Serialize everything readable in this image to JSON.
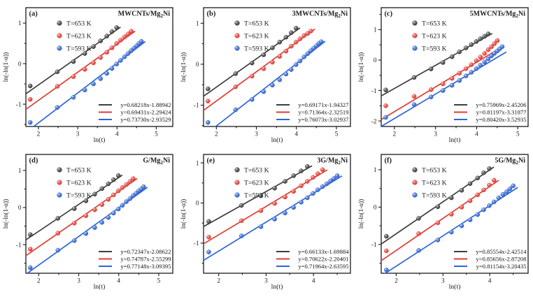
{
  "figure": {
    "background": "#ffffff",
    "axis_color": "#1a1a1a",
    "text_color": "#1a1a1a",
    "legend_labels": [
      "T=653 K",
      "T=623 K",
      "T=593 K"
    ],
    "series_colors": {
      "black": "#2e2e2e",
      "red": "#dd2c23",
      "blue": "#1f55c9"
    }
  },
  "chart_data": [
    {
      "type": "scatter",
      "panel_label": "(a)",
      "title_pre": "MWCNTs/Mg",
      "title_sub": "2",
      "title_post": "Ni",
      "xlabel": "ln(t)",
      "ylabel": "ln(-ln(1-α))",
      "xlim": [
        1.68,
        5.42
      ],
      "ylim": [
        -1.55,
        1.38
      ],
      "xticks": [
        2,
        3,
        4,
        5
      ],
      "yticks": [
        -1,
        0,
        1
      ],
      "grid": false,
      "legend_position": "top-left",
      "equations_position": "bottom-right",
      "series": [
        {
          "name": "T=653 K",
          "marker_color": "#2e2e2e",
          "line_color": "#3f3f3f",
          "fit_slope": 0.68218,
          "fit_intercept": -1.88942,
          "fit_label": "y=0.68218x-1.88942",
          "x": [
            1.79,
            2.48,
            2.89,
            3.18,
            3.4,
            3.58,
            3.74,
            3.87,
            3.99
          ],
          "y": [
            -0.55,
            -0.2,
            0.05,
            0.25,
            0.42,
            0.56,
            0.68,
            0.79,
            0.89
          ]
        },
        {
          "name": "T=623 K",
          "marker_color": "#dd2c23",
          "line_color": "#e03a30",
          "fit_slope": 0.69431,
          "fit_intercept": -2.29424,
          "fit_label": "y=0.69431x-2.29424",
          "x": [
            1.79,
            2.48,
            2.89,
            3.18,
            3.4,
            3.58,
            3.74,
            3.87,
            3.99,
            4.09,
            4.19,
            4.28,
            4.36
          ],
          "y": [
            -0.88,
            -0.56,
            -0.32,
            -0.14,
            0.02,
            0.15,
            0.28,
            0.39,
            0.5,
            0.58,
            0.66,
            0.73,
            0.8
          ]
        },
        {
          "name": "T=593 K",
          "marker_color": "#1f55c9",
          "line_color": "#2b66d9",
          "fit_slope": 0.7373,
          "fit_intercept": -2.93529,
          "fit_label": "y=0.73730x-2.93529",
          "x": [
            1.79,
            2.48,
            2.89,
            3.18,
            3.4,
            3.58,
            3.74,
            3.87,
            3.99,
            4.09,
            4.19,
            4.28,
            4.36,
            4.43,
            4.5,
            4.56,
            4.62
          ],
          "y": [
            -1.45,
            -1.08,
            -0.83,
            -0.65,
            -0.5,
            -0.37,
            -0.24,
            -0.12,
            -0.01,
            0.08,
            0.17,
            0.25,
            0.32,
            0.38,
            0.44,
            0.5,
            0.55
          ]
        }
      ]
    },
    {
      "type": "scatter",
      "panel_label": "(b)",
      "title_pre": "3MWCNTs/Mg",
      "title_sub": "2",
      "title_post": "Ni",
      "xlabel": "ln(t)",
      "ylabel": "ln(-ln(1-α))",
      "xlim": [
        1.68,
        5.35
      ],
      "ylim": [
        -1.52,
        1.38
      ],
      "xticks": [
        2,
        3,
        4,
        5
      ],
      "yticks": [
        -1,
        0,
        1
      ],
      "grid": false,
      "legend_position": "top-left",
      "equations_position": "bottom-right",
      "series": [
        {
          "name": "T=653 K",
          "marker_color": "#2e2e2e",
          "line_color": "#3f3f3f",
          "fit_slope": 0.69171,
          "fit_intercept": -1.94327,
          "fit_label": "y=0.69171x-1.94327",
          "x": [
            1.79,
            2.48,
            2.89,
            3.18,
            3.4,
            3.58,
            3.74,
            3.87,
            3.99
          ],
          "y": [
            -0.6,
            -0.23,
            0.03,
            0.23,
            0.4,
            0.54,
            0.66,
            0.77,
            0.88
          ]
        },
        {
          "name": "T=623 K",
          "marker_color": "#dd2c23",
          "line_color": "#e03a30",
          "fit_slope": 0.71364,
          "fit_intercept": -2.32519,
          "fit_label": "y=0.71364x-2.32519",
          "x": [
            1.79,
            2.48,
            2.89,
            3.18,
            3.4,
            3.58,
            3.74,
            3.87,
            3.99,
            4.09,
            4.19,
            4.28,
            4.36
          ],
          "y": [
            -0.9,
            -0.55,
            -0.29,
            -0.11,
            0.05,
            0.19,
            0.32,
            0.44,
            0.54,
            0.62,
            0.7,
            0.75,
            0.81
          ]
        },
        {
          "name": "T=593 K",
          "marker_color": "#1f55c9",
          "line_color": "#2b66d9",
          "fit_slope": 0.76073,
          "fit_intercept": -3.02937,
          "fit_label": "y=0.76073x-3.02937",
          "x": [
            1.79,
            2.48,
            2.89,
            3.18,
            3.4,
            3.58,
            3.74,
            3.87,
            3.99,
            4.09,
            4.19,
            4.28,
            4.36,
            4.43,
            4.5,
            4.56,
            4.62
          ],
          "y": [
            -1.42,
            -1.11,
            -0.86,
            -0.67,
            -0.51,
            -0.38,
            -0.24,
            -0.13,
            -0.01,
            0.08,
            0.18,
            0.26,
            0.33,
            0.39,
            0.45,
            0.51,
            0.55
          ]
        }
      ]
    },
    {
      "type": "scatter",
      "panel_label": "(c)",
      "title_pre": "5MWCNTs/Mg",
      "title_sub": "2",
      "title_post": "Ni",
      "xlabel": "ln(t)",
      "ylabel": "ln(-ln(1-α))",
      "xlim": [
        1.68,
        5.25
      ],
      "ylim": [
        -2.18,
        1.72
      ],
      "xticks": [
        2,
        3,
        4,
        5
      ],
      "yticks": [
        -2,
        -1,
        0,
        1
      ],
      "grid": false,
      "legend_position": "top-left",
      "equations_position": "bottom-right",
      "series": [
        {
          "name": "T=653 K",
          "marker_color": "#2e2e2e",
          "line_color": "#3f3f3f",
          "fit_slope": 0.75969,
          "fit_intercept": -2.45206,
          "fit_label": "y=0.75969x-2.45206",
          "x": [
            1.79,
            2.48,
            2.89,
            3.18,
            3.4,
            3.58,
            3.74,
            3.87,
            3.99,
            4.09,
            4.19,
            4.28
          ],
          "y": [
            -0.98,
            -0.57,
            -0.29,
            -0.08,
            0.11,
            0.27,
            0.4,
            0.51,
            0.61,
            0.7,
            0.78,
            0.86
          ]
        },
        {
          "name": "T=623 K",
          "marker_color": "#dd2c23",
          "line_color": "#e03a30",
          "fit_slope": 0.81197,
          "fit_intercept": -3.31877,
          "fit_label": "y=0.81197x-3.31877",
          "x": [
            1.79,
            2.48,
            2.89,
            3.18,
            3.4,
            3.58,
            3.74,
            3.87,
            3.99,
            4.09,
            4.19,
            4.28,
            4.36,
            4.43,
            4.5
          ],
          "y": [
            -1.5,
            -1.19,
            -0.97,
            -0.78,
            -0.6,
            -0.43,
            -0.28,
            -0.15,
            -0.02,
            0.1,
            0.22,
            0.34,
            0.44,
            0.54,
            0.64
          ]
        },
        {
          "name": "T=593 K",
          "marker_color": "#1f55c9",
          "line_color": "#2b66d9",
          "fit_slope": 0.8042,
          "fit_intercept": -3.52935,
          "fit_label": "y=0.80420x-3.52935",
          "x": [
            1.79,
            2.48,
            2.89,
            3.18,
            3.4,
            3.58,
            3.74,
            3.87,
            3.99,
            4.09,
            4.19,
            4.28,
            4.36,
            4.43,
            4.5,
            4.56,
            4.62
          ],
          "y": [
            -1.88,
            -1.46,
            -1.21,
            -1.0,
            -0.83,
            -0.67,
            -0.52,
            -0.4,
            -0.28,
            -0.17,
            -0.06,
            0.04,
            0.14,
            0.22,
            0.3,
            0.37,
            0.44
          ]
        }
      ]
    },
    {
      "type": "scatter",
      "panel_label": "(d)",
      "title_pre": "G/Mg",
      "title_sub": "2",
      "title_post": "Ni",
      "xlabel": "ln(t)",
      "ylabel": "ln(-ln(1-α))",
      "xlim": [
        1.68,
        5.35
      ],
      "ylim": [
        -1.77,
        1.43
      ],
      "xticks": [
        2,
        3,
        4,
        5
      ],
      "yticks": [
        -1,
        0,
        1
      ],
      "grid": false,
      "legend_position": "top-left",
      "equations_position": "bottom-right",
      "series": [
        {
          "name": "T=653 K",
          "marker_color": "#2e2e2e",
          "line_color": "#3f3f3f",
          "fit_slope": 0.72347,
          "fit_intercept": -2.08622,
          "fit_label": "y=0.72347x-2.08622",
          "x": [
            1.79,
            2.48,
            2.89,
            3.18,
            3.4,
            3.58,
            3.74,
            3.87,
            3.99
          ],
          "y": [
            -0.73,
            -0.29,
            -0.03,
            0.18,
            0.36,
            0.51,
            0.64,
            0.75,
            0.86
          ]
        },
        {
          "name": "T=623 K",
          "marker_color": "#dd2c23",
          "line_color": "#e03a30",
          "fit_slope": 0.74787,
          "fit_intercept": -2.55299,
          "fit_label": "y=0.74787x-2.55299",
          "x": [
            1.79,
            2.48,
            2.89,
            3.18,
            3.4,
            3.58,
            3.74,
            3.87,
            3.99,
            4.09,
            4.19,
            4.28,
            4.36
          ],
          "y": [
            -1.12,
            -0.69,
            -0.42,
            -0.22,
            -0.06,
            0.08,
            0.22,
            0.34,
            0.45,
            0.54,
            0.62,
            0.7,
            0.78
          ]
        },
        {
          "name": "T=593 K",
          "marker_color": "#1f55c9",
          "line_color": "#2b66d9",
          "fit_slope": 0.77148,
          "fit_intercept": -3.09395,
          "fit_label": "y=0.77148x-3.09395",
          "x": [
            1.79,
            2.48,
            2.89,
            3.18,
            3.4,
            3.58,
            3.74,
            3.87,
            3.99,
            4.09,
            4.19,
            4.28,
            4.36,
            4.43,
            4.5,
            4.56,
            4.62
          ],
          "y": [
            -1.62,
            -1.15,
            -0.89,
            -0.7,
            -0.54,
            -0.4,
            -0.27,
            -0.15,
            -0.04,
            0.06,
            0.16,
            0.24,
            0.32,
            0.38,
            0.45,
            0.5,
            0.56
          ]
        }
      ]
    },
    {
      "type": "scatter",
      "panel_label": "(e)",
      "title_pre": "3G/Mg",
      "title_sub": "2",
      "title_post": "Ni",
      "xlabel": "ln(t)",
      "ylabel": "ln(-ln(1-α))",
      "xlim": [
        1.68,
        4.78
      ],
      "ylim": [
        -1.75,
        1.21
      ],
      "xticks": [
        2,
        3,
        4
      ],
      "yticks": [
        -1,
        0,
        1
      ],
      "grid": false,
      "legend_position": "top-left",
      "equations_position": "bottom-right",
      "series": [
        {
          "name": "T=653 K",
          "marker_color": "#2e2e2e",
          "line_color": "#3f3f3f",
          "fit_slope": 0.66133,
          "fit_intercept": -1.69884,
          "fit_label": "y=0.66133x-1.69884",
          "x": [
            1.79,
            2.48,
            2.89,
            3.18,
            3.4,
            3.58,
            3.74,
            3.87
          ],
          "y": [
            -0.46,
            -0.06,
            0.18,
            0.37,
            0.54,
            0.68,
            0.8,
            0.91
          ]
        },
        {
          "name": "T=623 K",
          "marker_color": "#dd2c23",
          "line_color": "#e03a30",
          "fit_slope": 0.70622,
          "fit_intercept": -2.20401,
          "fit_label": "y=0.70622x-2.20401",
          "x": [
            1.79,
            2.48,
            2.89,
            3.18,
            3.4,
            3.58,
            3.74,
            3.87,
            3.99,
            4.09,
            4.19
          ],
          "y": [
            -0.85,
            -0.44,
            -0.19,
            -0.01,
            0.15,
            0.29,
            0.43,
            0.54,
            0.64,
            0.73,
            0.83
          ]
        },
        {
          "name": "T=593 K",
          "marker_color": "#1f55c9",
          "line_color": "#2b66d9",
          "fit_slope": 0.71964,
          "fit_intercept": -2.63595,
          "fit_label": "y=0.71964x-2.63595",
          "x": [
            1.79,
            2.48,
            2.89,
            3.18,
            3.4,
            3.58,
            3.74,
            3.87,
            3.99,
            4.09,
            4.19,
            4.28,
            4.36,
            4.43,
            4.5
          ],
          "y": [
            -1.22,
            -0.82,
            -0.59,
            -0.4,
            -0.25,
            -0.11,
            0.02,
            0.13,
            0.24,
            0.33,
            0.41,
            0.48,
            0.55,
            0.61,
            0.68
          ]
        }
      ]
    },
    {
      "type": "scatter",
      "panel_label": "(f)",
      "title_pre": "5G/Mg",
      "title_sub": "2",
      "title_post": "Ni",
      "xlabel": "ln(t)",
      "ylabel": "ln(-ln(1-α))",
      "xlim": [
        1.68,
        4.82
      ],
      "ylim": [
        -1.77,
        1.41
      ],
      "xticks": [
        2,
        3,
        4
      ],
      "yticks": [
        -1,
        0,
        1
      ],
      "grid": false,
      "legend_position": "top-left",
      "equations_position": "bottom-right",
      "series": [
        {
          "name": "T=653 K",
          "marker_color": "#2e2e2e",
          "line_color": "#3f3f3f",
          "fit_slope": 0.85554,
          "fit_intercept": -2.42514,
          "fit_label": "y=0.85554x-2.42514",
          "x": [
            1.79,
            2.48,
            2.89,
            3.18,
            3.4,
            3.58,
            3.74,
            3.87,
            3.99
          ],
          "y": [
            -0.78,
            -0.3,
            0.01,
            0.25,
            0.45,
            0.63,
            0.78,
            0.92,
            1.03
          ]
        },
        {
          "name": "T=623 K",
          "marker_color": "#dd2c23",
          "line_color": "#e03a30",
          "fit_slope": 0.85656,
          "fit_intercept": -2.87208,
          "fit_label": "y=0.85656x-2.87208",
          "x": [
            1.79,
            2.48,
            2.89,
            3.18,
            3.4,
            3.58,
            3.74,
            3.87,
            3.99,
            4.09
          ],
          "y": [
            -1.17,
            -0.71,
            -0.42,
            -0.19,
            0.0,
            0.17,
            0.33,
            0.46,
            0.59,
            0.72
          ]
        },
        {
          "name": "T=593 K",
          "marker_color": "#1f55c9",
          "line_color": "#2b66d9",
          "fit_slope": 0.81154,
          "fit_intercept": -3.20435,
          "fit_label": "y=0.81154x-3.20435",
          "x": [
            1.79,
            2.48,
            2.89,
            3.18,
            3.4,
            3.58,
            3.74,
            3.87,
            3.99,
            4.09,
            4.19,
            4.28,
            4.36,
            4.43,
            4.5
          ],
          "y": [
            -1.68,
            -1.16,
            -0.88,
            -0.67,
            -0.5,
            -0.34,
            -0.2,
            -0.07,
            0.04,
            0.14,
            0.25,
            0.34,
            0.41,
            0.49,
            0.57
          ]
        }
      ]
    }
  ]
}
